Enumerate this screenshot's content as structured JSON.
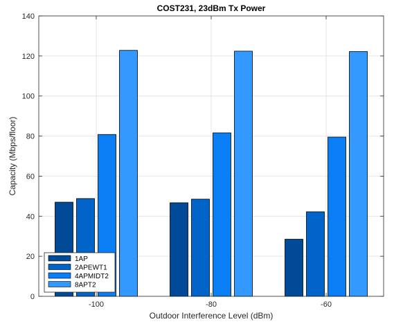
{
  "chart_data": {
    "type": "bar",
    "title": "COST231, 23dBm Tx Power",
    "xlabel": "Outdoor Interference Level (dBm)",
    "ylabel": "Capacity (Mbps/floor)",
    "categories": [
      "-100",
      "-80",
      "-60"
    ],
    "ylim": [
      0,
      140
    ],
    "yticks": [
      0,
      20,
      40,
      60,
      80,
      100,
      120,
      140
    ],
    "grid": true,
    "legend_position": "bottom-left",
    "series": [
      {
        "name": "1AP",
        "color": "#014a97",
        "values": [
          47,
          46.7,
          28.5
        ]
      },
      {
        "name": "2APEWT1",
        "color": "#0064c8",
        "values": [
          48.8,
          48.5,
          42.2
        ]
      },
      {
        "name": "4APMIDT2",
        "color": "#0a7ef5",
        "values": [
          80.8,
          81.6,
          79.5
        ]
      },
      {
        "name": "8APT2",
        "color": "#3399ff",
        "values": [
          122.8,
          122.4,
          122.2
        ]
      }
    ]
  }
}
